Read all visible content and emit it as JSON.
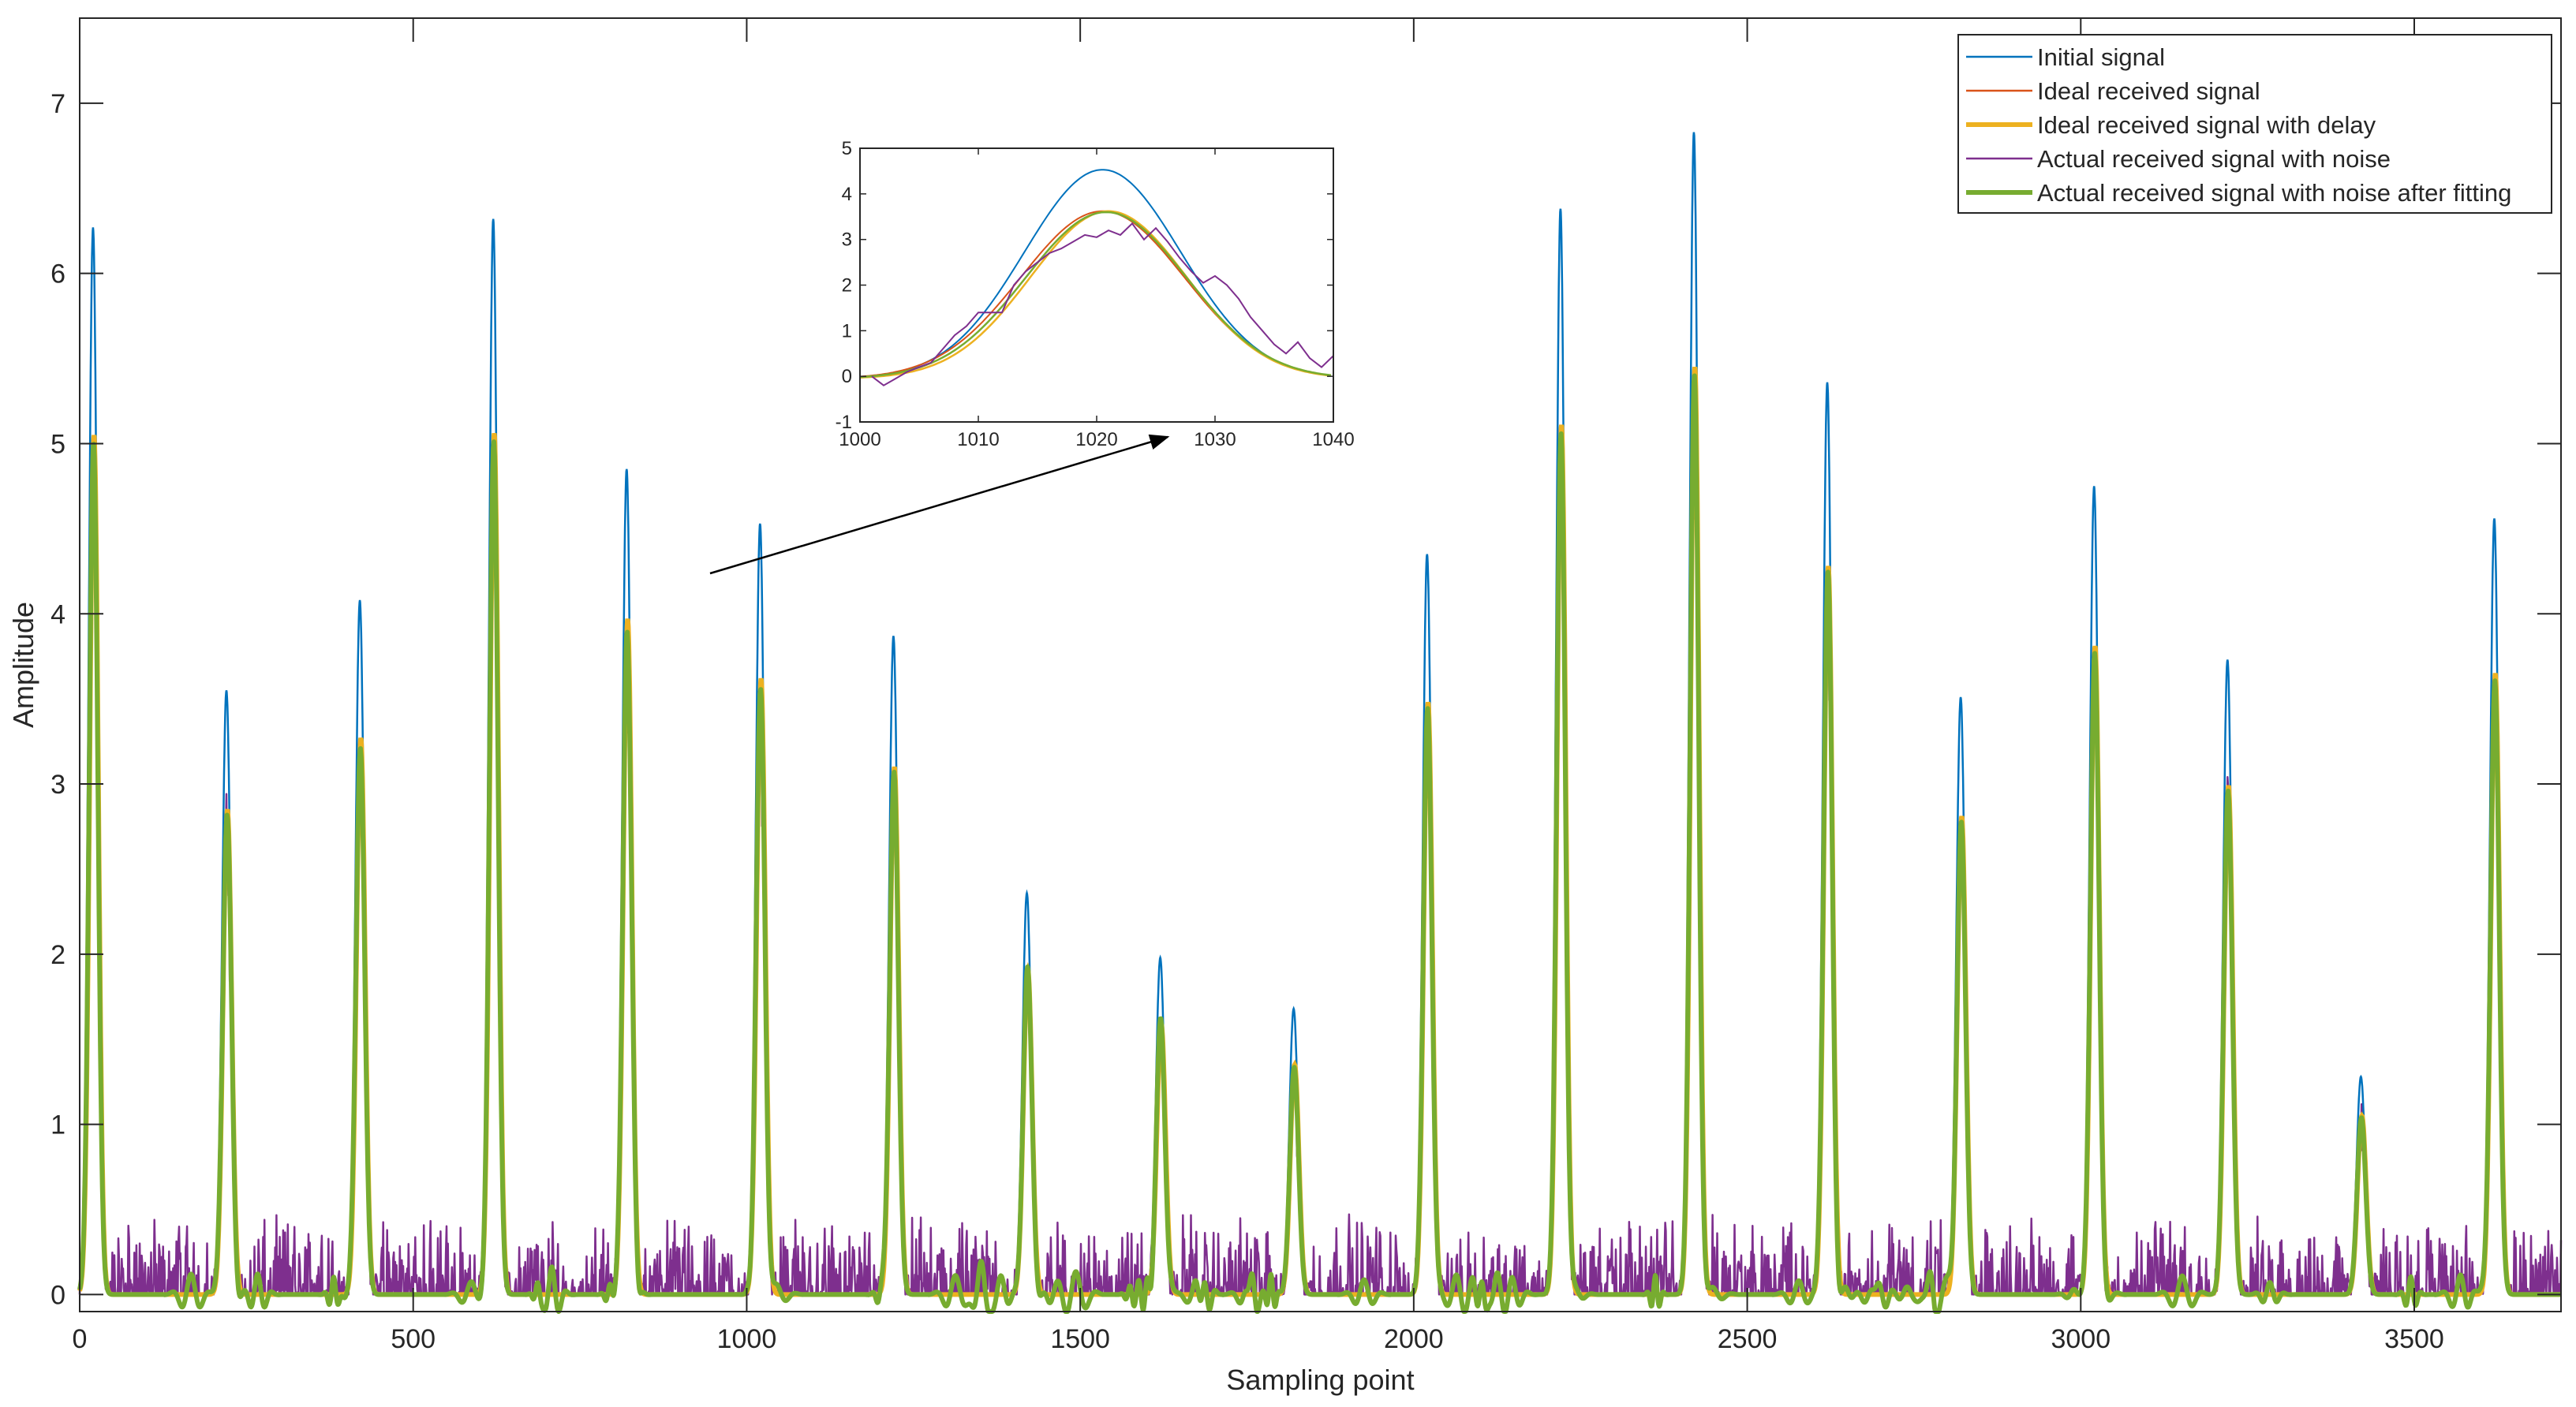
{
  "chart_data": {
    "type": "line",
    "main": {
      "xlabel": "Sampling point",
      "ylabel": "Amplitude",
      "xlim": [
        0,
        3720
      ],
      "ylim": [
        -0.1,
        7.5
      ],
      "xticks": [
        "0",
        "500",
        "1000",
        "1500",
        "2000",
        "2500",
        "3000",
        "3500"
      ],
      "yticks": [
        "0",
        "1",
        "2",
        "3",
        "4",
        "5",
        "6",
        "7"
      ],
      "grid": false,
      "pulse_period": 200,
      "first_pulse_center": 20,
      "pulse_centers": [
        20,
        220,
        420,
        620,
        820,
        1020,
        1220,
        1420,
        1620,
        1820,
        2020,
        2220,
        2420,
        2620,
        2820,
        3020,
        3220,
        3420,
        3620
      ],
      "initial_peaks": [
        6.27,
        3.55,
        4.08,
        6.32,
        4.85,
        4.53,
        3.87,
        2.36,
        1.98,
        1.68,
        4.35,
        6.38,
        6.83,
        5.36,
        3.51,
        4.75,
        3.73,
        1.28,
        4.56
      ],
      "received_peaks": [
        5.05,
        2.85,
        3.27,
        5.06,
        3.97,
        3.62,
        3.1,
        1.91,
        1.59,
        1.35,
        3.48,
        5.11,
        5.45,
        4.28,
        2.81,
        3.81,
        2.99,
        1.05,
        3.65
      ],
      "noise_max": 0.5
    },
    "series": [
      {
        "name": "Initial signal",
        "color": "#0072BD",
        "width": 2.5
      },
      {
        "name": "Ideal received signal",
        "color": "#D95319",
        "width": 2.5
      },
      {
        "name": "Ideal received signal with delay",
        "color": "#EDB120",
        "width": 6
      },
      {
        "name": "Actual received signal with noise",
        "color": "#7E2F8E",
        "width": 2.5
      },
      {
        "name": "Actual received signal with noise after fitting",
        "color": "#77AC30",
        "width": 6
      }
    ],
    "legend_position": "top-right",
    "inset": {
      "xlim": [
        1000,
        1040
      ],
      "ylim": [
        -1,
        5
      ],
      "xticks": [
        "1000",
        "1010",
        "1020",
        "1030",
        "1040"
      ],
      "yticks": [
        "-1",
        "0",
        "1",
        "2",
        "3",
        "4",
        "5"
      ],
      "initial_peak": 4.53,
      "received_peak": 3.62,
      "peak_x": 1020.5,
      "noisy_points": [
        [
          1001,
          0.0
        ],
        [
          1002,
          -0.2
        ],
        [
          1003,
          -0.05
        ],
        [
          1004,
          0.1
        ],
        [
          1005,
          0.2
        ],
        [
          1006,
          0.3
        ],
        [
          1007,
          0.6
        ],
        [
          1008,
          0.9
        ],
        [
          1009,
          1.1
        ],
        [
          1010,
          1.4
        ],
        [
          1011,
          1.4
        ],
        [
          1012,
          1.4
        ],
        [
          1013,
          2.0
        ],
        [
          1014,
          2.3
        ],
        [
          1015,
          2.5
        ],
        [
          1016,
          2.7
        ],
        [
          1017,
          2.8
        ],
        [
          1018,
          2.95
        ],
        [
          1019,
          3.1
        ],
        [
          1020,
          3.05
        ],
        [
          1021,
          3.2
        ],
        [
          1022,
          3.1
        ],
        [
          1023,
          3.35
        ],
        [
          1024,
          3.0
        ],
        [
          1025,
          3.25
        ],
        [
          1026,
          2.95
        ],
        [
          1027,
          2.6
        ],
        [
          1028,
          2.3
        ],
        [
          1029,
          2.05
        ],
        [
          1030,
          2.2
        ],
        [
          1031,
          2.0
        ],
        [
          1032,
          1.7
        ],
        [
          1033,
          1.3
        ],
        [
          1034,
          1.0
        ],
        [
          1035,
          0.7
        ],
        [
          1036,
          0.5
        ],
        [
          1037,
          0.75
        ],
        [
          1038,
          0.4
        ],
        [
          1039,
          0.2
        ],
        [
          1040,
          0.45
        ]
      ]
    }
  }
}
